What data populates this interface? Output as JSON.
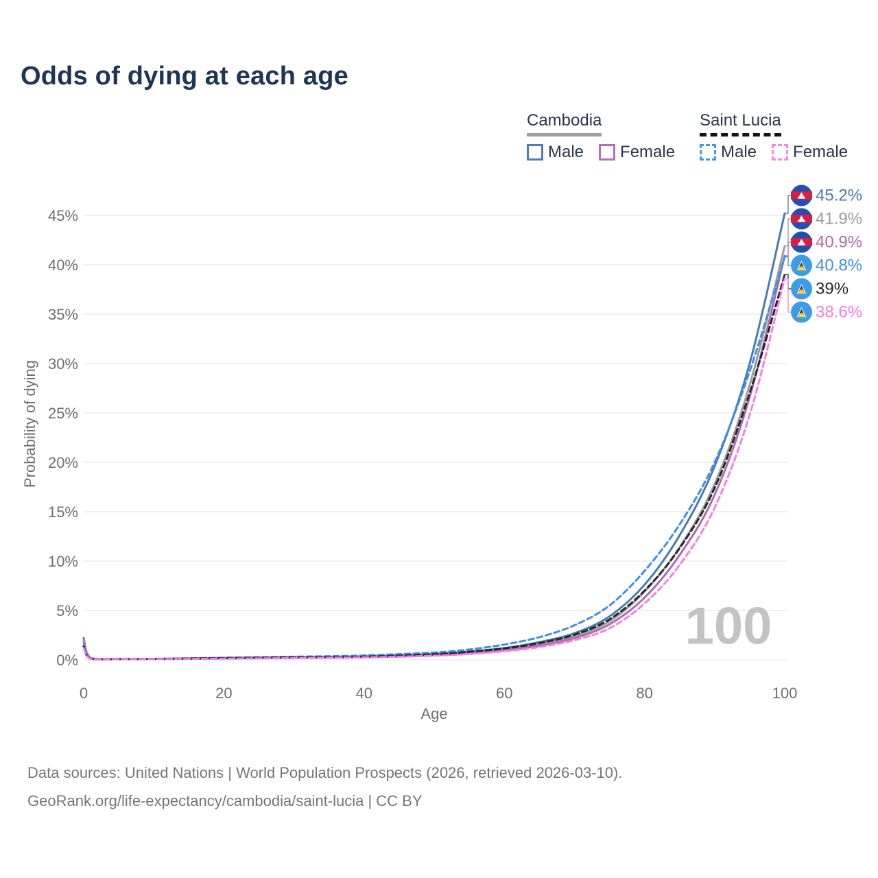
{
  "header": {
    "title": "Odds of dying at each age"
  },
  "legend": {
    "groups": [
      {
        "country": "Cambodia",
        "underline_style": "solid",
        "underline_color": "#9e9e9e",
        "items": [
          {
            "label": "Male",
            "color": "#4f7cb4",
            "box_style": "solid"
          },
          {
            "label": "Female",
            "color": "#b470b6",
            "box_style": "solid"
          }
        ]
      },
      {
        "country": "Saint Lucia",
        "underline_style": "dashed",
        "underline_color": "#141414",
        "items": [
          {
            "label": "Male",
            "color": "#4493ec",
            "box_style": "dashed"
          },
          {
            "label": "Female",
            "color": "#fb85e4",
            "box_style": "dashed"
          }
        ]
      }
    ]
  },
  "chart_data": {
    "type": "line",
    "title": "Odds of dying at each age",
    "xlabel": "Age",
    "ylabel": "Probability of dying",
    "xlim": [
      0,
      100
    ],
    "ylim": [
      0,
      47
    ],
    "x_ticks": [
      0,
      20,
      40,
      60,
      80,
      100
    ],
    "y_tick_step_percent": 5,
    "y_ticks": [
      "0%",
      "5%",
      "10%",
      "15%",
      "20%",
      "25%",
      "30%",
      "35%",
      "40%",
      "45%"
    ],
    "grid": "horizontal",
    "legend_position": "top-right",
    "watermark": "100",
    "x": [
      0,
      1,
      5,
      10,
      20,
      30,
      40,
      50,
      55,
      60,
      65,
      70,
      75,
      80,
      85,
      90,
      95,
      100
    ],
    "series": [
      {
        "name": "Cambodia Male",
        "style": "solid",
        "color": "#4b79b2",
        "flag": "cambodia",
        "end_label": "45.2%",
        "values": [
          2.2,
          0.2,
          0.1,
          0.1,
          0.2,
          0.28,
          0.35,
          0.6,
          0.85,
          1.2,
          1.8,
          2.7,
          4.4,
          7.6,
          12.6,
          19.6,
          30.0,
          45.2
        ]
      },
      {
        "name": "Cambodia Average",
        "style": "solid",
        "color": "#9c9c9c",
        "flag": "cambodia",
        "end_label": "41.9%",
        "values": [
          2.0,
          0.17,
          0.09,
          0.09,
          0.17,
          0.24,
          0.3,
          0.52,
          0.75,
          1.05,
          1.6,
          2.4,
          3.9,
          6.9,
          11.4,
          17.8,
          27.8,
          41.9
        ]
      },
      {
        "name": "Cambodia Female",
        "style": "solid",
        "color": "#ad6cb0",
        "flag": "cambodia",
        "end_label": "40.9%",
        "values": [
          1.8,
          0.15,
          0.08,
          0.08,
          0.14,
          0.2,
          0.26,
          0.46,
          0.66,
          0.95,
          1.45,
          2.2,
          3.6,
          6.3,
          10.6,
          16.7,
          26.6,
          40.9
        ]
      },
      {
        "name": "Saint Lucia Male",
        "style": "dashed",
        "color": "#3e8fe8",
        "flag": "saint-lucia",
        "end_label": "40.8%",
        "values": [
          1.5,
          0.12,
          0.08,
          0.1,
          0.22,
          0.32,
          0.45,
          0.75,
          1.05,
          1.55,
          2.3,
          3.5,
          5.5,
          9.0,
          13.7,
          20.0,
          29.2,
          40.8
        ]
      },
      {
        "name": "Saint Lucia Average",
        "style": "dashed",
        "color": "#262626",
        "flag": "saint-lucia",
        "end_label": "39%",
        "values": [
          1.35,
          0.1,
          0.07,
          0.09,
          0.17,
          0.25,
          0.33,
          0.57,
          0.82,
          1.15,
          1.7,
          2.55,
          4.1,
          7.0,
          11.3,
          17.4,
          27.0,
          39.0
        ]
      },
      {
        "name": "Saint Lucia Female",
        "style": "dashed",
        "color": "#f97de2",
        "flag": "saint-lucia",
        "end_label": "38.6%",
        "values": [
          1.2,
          0.09,
          0.06,
          0.07,
          0.12,
          0.18,
          0.25,
          0.42,
          0.6,
          0.88,
          1.3,
          2.0,
          3.2,
          5.7,
          9.6,
          15.4,
          24.8,
          38.6
        ]
      }
    ]
  },
  "icons": {
    "cambodia_flag": {
      "blue": "#2050b0",
      "red": "#d81e44",
      "temple": "#ffffff"
    },
    "saint_lucia_flag": {
      "blue": "#3d9be8",
      "dark": "#2b2b2b",
      "white": "#ffffff",
      "yellow": "#f7d04b"
    }
  },
  "footer": {
    "line1": "Data sources: United Nations | World Population Prospects (2026, retrieved 2026-03-10).",
    "line2": "GeoRank.org/life-expectancy/cambodia/saint-lucia | CC BY"
  }
}
